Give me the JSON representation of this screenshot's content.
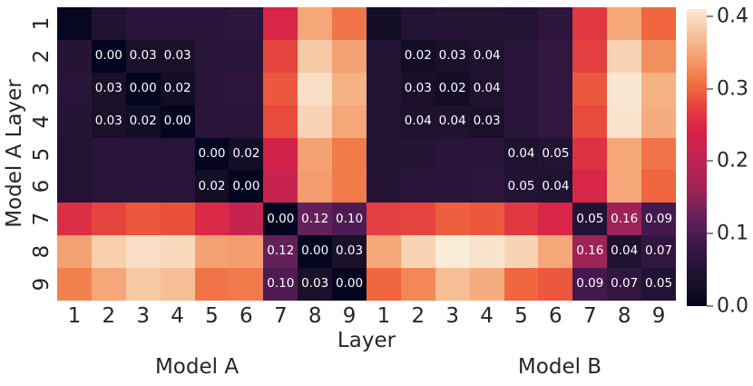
{
  "figure": {
    "background": "#ffffff",
    "text_color": "#262626",
    "ylabel": "Model A Layer",
    "xlabel": "Layer",
    "group_labels": [
      "Model A",
      "Model B"
    ],
    "y_tick_labels": [
      "1",
      "2",
      "3",
      "4",
      "5",
      "6",
      "7",
      "8",
      "9"
    ],
    "x_tick_labels": [
      "1",
      "2",
      "3",
      "4",
      "5",
      "6",
      "7",
      "8",
      "9",
      "1",
      "2",
      "3",
      "4",
      "5",
      "6",
      "7",
      "8",
      "9"
    ],
    "colorbar": {
      "tick_labels": [
        "0.0",
        "0.1",
        "0.2",
        "0.3",
        "0.4"
      ],
      "tick_values": [
        0.0,
        0.1,
        0.2,
        0.3,
        0.4
      ],
      "vmin": 0.0,
      "vmax": 0.41
    }
  },
  "chart_data": {
    "type": "heatmap",
    "title": "",
    "xlabel": "Layer",
    "ylabel": "Model A Layer",
    "x_groups": [
      "Model A",
      "Model B"
    ],
    "row_labels": [
      "1",
      "2",
      "3",
      "4",
      "5",
      "6",
      "7",
      "8",
      "9"
    ],
    "col_labels": [
      "A1",
      "A2",
      "A3",
      "A4",
      "A5",
      "A6",
      "A7",
      "A8",
      "A9",
      "B1",
      "B2",
      "B3",
      "B4",
      "B5",
      "B6",
      "B7",
      "B8",
      "B9"
    ],
    "vmin": 0.0,
    "vmax": 0.41,
    "colormap": "rocket",
    "annotation_color": "#ffffff",
    "colormap_anchors": [
      [
        0.0,
        "#04051E"
      ],
      [
        0.02,
        "#130D26"
      ],
      [
        0.03,
        "#1A1029"
      ],
      [
        0.05,
        "#221334"
      ],
      [
        0.07,
        "#31163F"
      ],
      [
        0.09,
        "#44194F"
      ],
      [
        0.12,
        "#63215A"
      ],
      [
        0.16,
        "#9E2357"
      ],
      [
        0.2,
        "#BC2553"
      ],
      [
        0.24,
        "#D62149"
      ],
      [
        0.26,
        "#DE3244"
      ],
      [
        0.28,
        "#E84A3C"
      ],
      [
        0.3,
        "#EF663F"
      ],
      [
        0.32,
        "#F0814E"
      ],
      [
        0.34,
        "#F49C6D"
      ],
      [
        0.36,
        "#F5B285"
      ],
      [
        0.38,
        "#F7C9A4"
      ],
      [
        0.4,
        "#F9DFC5"
      ],
      [
        0.42,
        "#FBEFE0"
      ]
    ],
    "values": [
      [
        0.005,
        0.045,
        0.06,
        0.06,
        0.06,
        0.065,
        0.245,
        0.35,
        0.31,
        0.02,
        0.05,
        0.055,
        0.055,
        0.05,
        0.065,
        0.265,
        0.35,
        0.3
      ],
      [
        0.055,
        0.0,
        0.03,
        0.03,
        0.06,
        0.06,
        0.275,
        0.38,
        0.345,
        0.05,
        0.02,
        0.03,
        0.04,
        0.06,
        0.07,
        0.27,
        0.39,
        0.33
      ],
      [
        0.06,
        0.03,
        0.0,
        0.02,
        0.06,
        0.065,
        0.29,
        0.4,
        0.36,
        0.05,
        0.03,
        0.02,
        0.04,
        0.06,
        0.07,
        0.29,
        0.41,
        0.36
      ],
      [
        0.055,
        0.03,
        0.02,
        0.0,
        0.06,
        0.06,
        0.28,
        0.39,
        0.35,
        0.05,
        0.04,
        0.04,
        0.03,
        0.06,
        0.07,
        0.28,
        0.405,
        0.355
      ],
      [
        0.05,
        0.06,
        0.06,
        0.058,
        0.0,
        0.02,
        0.235,
        0.345,
        0.315,
        0.05,
        0.055,
        0.06,
        0.06,
        0.04,
        0.05,
        0.26,
        0.35,
        0.31
      ],
      [
        0.05,
        0.06,
        0.06,
        0.058,
        0.02,
        0.0,
        0.215,
        0.34,
        0.315,
        0.055,
        0.058,
        0.06,
        0.062,
        0.05,
        0.04,
        0.245,
        0.35,
        0.3
      ],
      [
        0.255,
        0.275,
        0.29,
        0.285,
        0.25,
        0.215,
        0.0,
        0.12,
        0.1,
        0.27,
        0.275,
        0.295,
        0.29,
        0.265,
        0.245,
        0.05,
        0.16,
        0.09
      ],
      [
        0.345,
        0.385,
        0.4,
        0.395,
        0.345,
        0.34,
        0.12,
        0.0,
        0.03,
        0.35,
        0.39,
        0.415,
        0.405,
        0.39,
        0.35,
        0.16,
        0.04,
        0.07
      ],
      [
        0.32,
        0.35,
        0.38,
        0.37,
        0.31,
        0.315,
        0.1,
        0.03,
        0.0,
        0.3,
        0.325,
        0.37,
        0.355,
        0.3,
        0.29,
        0.09,
        0.07,
        0.05
      ]
    ],
    "annotations": [
      [
        "",
        "",
        "",
        "",
        "",
        "",
        "",
        "",
        "",
        "",
        "",
        "",
        "",
        "",
        "",
        "",
        "",
        ""
      ],
      [
        "",
        "0.00",
        "0.03",
        "0.03",
        "",
        "",
        "",
        "",
        "",
        "",
        "0.02",
        "0.03",
        "0.04",
        "",
        "",
        "",
        "",
        ""
      ],
      [
        "",
        "0.03",
        "0.00",
        "0.02",
        "",
        "",
        "",
        "",
        "",
        "",
        "0.03",
        "0.02",
        "0.04",
        "",
        "",
        "",
        "",
        ""
      ],
      [
        "",
        "0.03",
        "0.02",
        "0.00",
        "",
        "",
        "",
        "",
        "",
        "",
        "0.04",
        "0.04",
        "0.03",
        "",
        "",
        "",
        "",
        ""
      ],
      [
        "",
        "",
        "",
        "",
        "0.00",
        "0.02",
        "",
        "",
        "",
        "",
        "",
        "",
        "",
        "0.04",
        "0.05",
        "",
        "",
        ""
      ],
      [
        "",
        "",
        "",
        "",
        "0.02",
        "0.00",
        "",
        "",
        "",
        "",
        "",
        "",
        "",
        "0.05",
        "0.04",
        "",
        "",
        ""
      ],
      [
        "",
        "",
        "",
        "",
        "",
        "",
        "0.00",
        "0.12",
        "0.10",
        "",
        "",
        "",
        "",
        "",
        "",
        "0.05",
        "0.16",
        "0.09"
      ],
      [
        "",
        "",
        "",
        "",
        "",
        "",
        "0.12",
        "0.00",
        "0.03",
        "",
        "",
        "",
        "",
        "",
        "",
        "0.16",
        "0.04",
        "0.07"
      ],
      [
        "",
        "",
        "",
        "",
        "",
        "",
        "0.10",
        "0.03",
        "0.00",
        "",
        "",
        "",
        "",
        "",
        "",
        "0.09",
        "0.07",
        "0.05"
      ]
    ]
  }
}
